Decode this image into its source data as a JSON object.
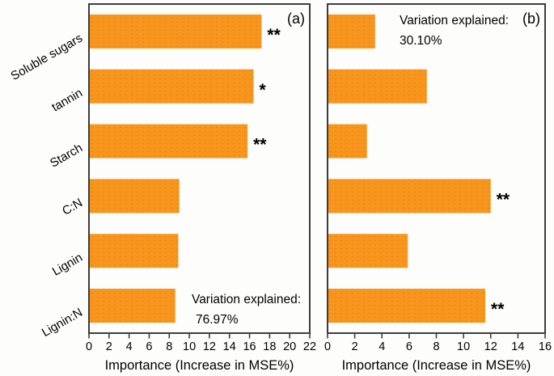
{
  "colors": {
    "bar": "#F8951D",
    "bar_dot": "rgba(190,95,0,0.38)",
    "frame": "#3d3d3d",
    "text": "#000000",
    "background": "#fdfdfc"
  },
  "chart_data": [
    {
      "type": "bar",
      "orientation": "horizontal",
      "panel_label": "(a)",
      "categories": [
        "Soluble sugars",
        "tannin",
        "Starch",
        "C:N",
        "Lignin",
        "Lignin:N"
      ],
      "values": [
        17.2,
        16.4,
        15.8,
        9.0,
        8.9,
        8.6
      ],
      "significance": [
        "**",
        "*",
        "**",
        "",
        "",
        ""
      ],
      "xlabel": "Importance (Increase in MSE%)",
      "xlim": [
        0,
        22
      ],
      "xticks": [
        0,
        2,
        4,
        6,
        8,
        10,
        12,
        14,
        16,
        18,
        20,
        22
      ],
      "annotation_lines": [
        "Variation explained:",
        "76.97%"
      ],
      "annotation_position": "bottom-right",
      "grid": false,
      "legend": "none",
      "show_category_labels": true
    },
    {
      "type": "bar",
      "orientation": "horizontal",
      "panel_label": "(b)",
      "categories": [
        "Soluble sugars",
        "tannin",
        "Starch",
        "C:N",
        "Lignin",
        "Lignin:N"
      ],
      "values": [
        3.5,
        7.3,
        2.9,
        12.0,
        5.9,
        11.6
      ],
      "significance": [
        "",
        "",
        "",
        "**",
        "",
        "**"
      ],
      "xlabel": "Importance (Increase in MSE%)",
      "xlim": [
        0,
        16
      ],
      "xticks": [
        0,
        2,
        4,
        6,
        8,
        10,
        12,
        14,
        16
      ],
      "annotation_lines": [
        "Variation explained:",
        "30.10%"
      ],
      "annotation_position": "top-left",
      "grid": false,
      "legend": "none",
      "show_category_labels": false
    }
  ]
}
